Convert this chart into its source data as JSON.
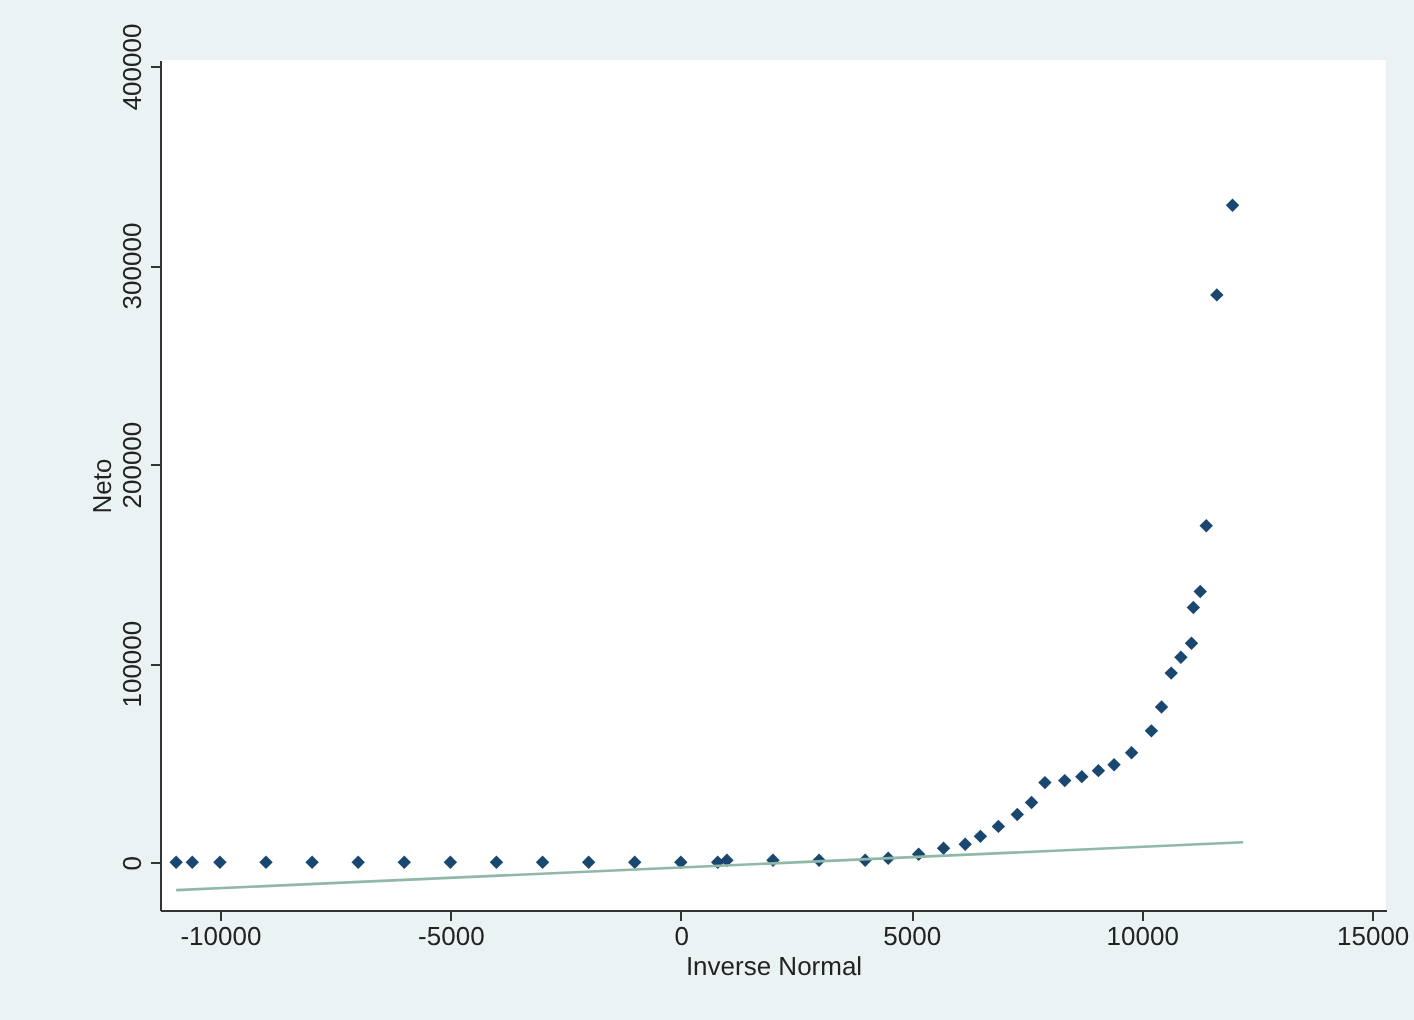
{
  "chart_data": {
    "type": "scatter",
    "xlabel": "Inverse Normal",
    "ylabel": "Neto",
    "xlim": [
      -11300,
      15300
    ],
    "ylim": [
      -24000,
      403000
    ],
    "xticks": [
      -10000,
      -5000,
      0,
      5000,
      10000,
      15000
    ],
    "yticks": [
      0,
      100000,
      200000,
      300000,
      400000
    ],
    "series": [
      {
        "type": "scatter",
        "marker": "diamond",
        "color": "#1a476f",
        "x": [
          -10950,
          -10600,
          -10000,
          -9000,
          -8000,
          -7000,
          -6000,
          -5000,
          -4000,
          -3000,
          -2000,
          -1000,
          0,
          800,
          1000,
          2000,
          3000,
          4000,
          4500,
          5160,
          5700,
          6170,
          6500,
          6890,
          7300,
          7610,
          7900,
          8330,
          8700,
          9060,
          9400,
          9780,
          10210,
          10430,
          10640,
          10850,
          11080,
          11120,
          11270,
          11400,
          11630,
          11970
        ],
        "values": [
          0,
          0,
          0,
          0,
          0,
          0,
          0,
          0,
          0,
          0,
          0,
          0,
          0,
          0,
          1000,
          1000,
          1000,
          1000,
          2000,
          4000,
          7000,
          9000,
          13000,
          18000,
          24000,
          30000,
          40000,
          41000,
          43000,
          46000,
          49000,
          55000,
          66000,
          78000,
          95000,
          103000,
          110000,
          128000,
          136000,
          169000,
          285000,
          330000
        ]
      },
      {
        "type": "line",
        "color": "#90b8a8",
        "x": [
          -10950,
          12200
        ],
        "values": [
          -14000,
          10000
        ]
      }
    ]
  }
}
